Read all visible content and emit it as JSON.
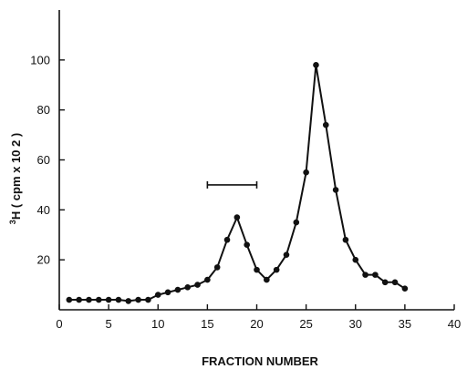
{
  "chart_data": {
    "type": "line",
    "xlabel": "FRACTION NUMBER",
    "ylabel_sup": "3",
    "ylabel": "H ( cpm x 10 2 )",
    "xlim": [
      0,
      40
    ],
    "ylim": [
      0,
      120
    ],
    "x_ticks": [
      0,
      5,
      10,
      15,
      20,
      25,
      30,
      35,
      40
    ],
    "y_ticks": [
      20,
      40,
      60,
      80,
      100
    ],
    "grid": false,
    "legend": "none",
    "series": [
      {
        "x": [
          1,
          2,
          3,
          4,
          5,
          6,
          7,
          8,
          9,
          10,
          11,
          12,
          13,
          14,
          15,
          16,
          17,
          18,
          19,
          20,
          21,
          22,
          23,
          24,
          25,
          26,
          27,
          28,
          29,
          30,
          31,
          32,
          33,
          34,
          35
        ],
        "values": [
          4,
          4,
          4,
          4,
          4,
          4,
          3.5,
          4,
          4,
          6,
          7,
          8,
          9,
          10,
          12,
          17,
          28,
          37,
          26,
          16,
          12,
          16,
          22,
          35,
          55,
          98,
          74,
          48,
          28,
          20,
          14,
          14,
          11,
          11,
          8.5
        ]
      }
    ],
    "annotations": [
      {
        "type": "range-bar",
        "x_start": 15,
        "x_end": 20,
        "y": 50
      }
    ]
  }
}
